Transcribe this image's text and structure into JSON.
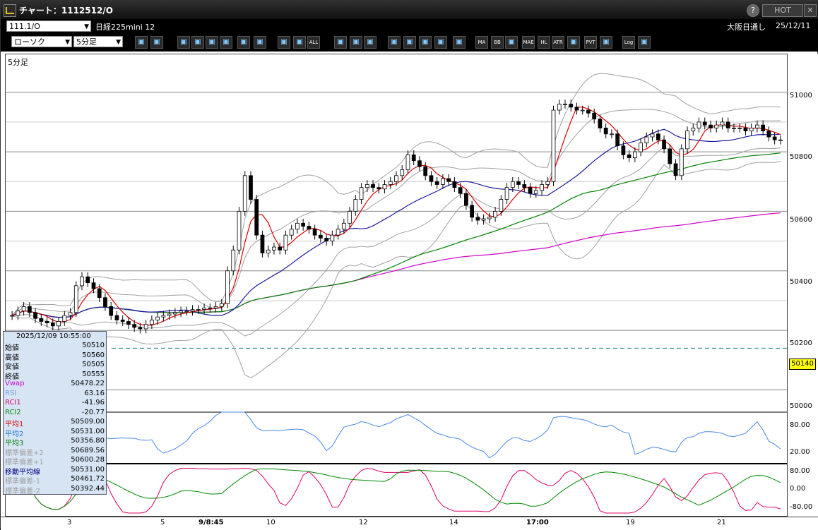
{
  "window": {
    "title": "チャート：1112512/O",
    "hot_label": "HOT",
    "help_label": "?",
    "close_label": "✕"
  },
  "header": {
    "symbol_code": "111.1/O",
    "symbol_name": "日経225mini 12",
    "session": "大阪日通し",
    "date": "25/12/11"
  },
  "toolbar": {
    "chart_type": "ローソク",
    "timeframe": "5分足",
    "buttons": [
      "ALL",
      "MA",
      "BB",
      "MAE",
      "HL",
      "ATR",
      "PVT",
      "Log"
    ]
  },
  "panel": {
    "timeframe_label": "5分足"
  },
  "price_axis": {
    "labels": [
      "51000",
      "50800",
      "50600",
      "50400",
      "50200",
      "50000"
    ],
    "current_price": "50140"
  },
  "rsi_axis": {
    "labels": [
      "80.00",
      "20.00"
    ]
  },
  "rci_axis": {
    "labels": [
      "80.00",
      "0.00",
      "-80.00"
    ]
  },
  "x_axis": {
    "labels": [
      {
        "text": "3",
        "bold": false
      },
      {
        "text": "5",
        "bold": false
      },
      {
        "text": "9/8:45",
        "bold": true
      },
      {
        "text": "10",
        "bold": false
      },
      {
        "text": "12",
        "bold": false
      },
      {
        "text": "14",
        "bold": false
      },
      {
        "text": "17:00",
        "bold": true
      },
      {
        "text": "19",
        "bold": false
      },
      {
        "text": "21",
        "bold": false
      }
    ]
  },
  "info": {
    "datetime": "2025/12/09  10:55:00",
    "rows": [
      {
        "k": "始値",
        "v": "50510",
        "color": "#000000"
      },
      {
        "k": "高値",
        "v": "50560",
        "color": "#000000"
      },
      {
        "k": "安値",
        "v": "50505",
        "color": "#000000"
      },
      {
        "k": "終値",
        "v": "50555",
        "color": "#000000"
      },
      {
        "k": "Vwap",
        "v": "50478.22",
        "color": "#cc00cc"
      },
      {
        "k": "RSI",
        "v": "63.16",
        "color": "#6aa0e8"
      },
      {
        "k": "RCI1",
        "v": "-41.96",
        "color": "#e0006a"
      },
      {
        "k": "RCI2",
        "v": "-20.77",
        "color": "#008800"
      },
      {
        "k": "平均1",
        "v": "50509.00",
        "color": "#e00000"
      },
      {
        "k": "平均2",
        "v": "50531.00",
        "color": "#1a7ad0"
      },
      {
        "k": "平均3",
        "v": "50356.80",
        "color": "#007a00"
      },
      {
        "k": "標準偏差+2",
        "v": "50689.56",
        "color": "#a0a0a0"
      },
      {
        "k": "標準偏差+1",
        "v": "50600.28",
        "color": "#a0a0a0"
      },
      {
        "k": "移動平均線",
        "v": "50531.00",
        "color": "#000080"
      },
      {
        "k": "標準偏差-1",
        "v": "50461.72",
        "color": "#a0a0a0"
      },
      {
        "k": "標準偏差-2",
        "v": "50392.44",
        "color": "#a0a0a0"
      }
    ]
  },
  "colors": {
    "up": "#ffffff",
    "down": "#000000",
    "ma_short": "#dd0000",
    "ma_mid": "#1a1aa0",
    "ma_long": "#008000",
    "vwap": "#cc00cc",
    "bands": "#a0a0a0",
    "rsi": "#4a88e8",
    "rci1": "#e0006a",
    "rci2": "#008800"
  },
  "chart_data": {
    "type": "candlestick",
    "price_ylim": [
      49930,
      51080
    ],
    "closes": [
      50250,
      50265,
      50280,
      50260,
      50240,
      50230,
      50225,
      50215,
      50230,
      50250,
      50260,
      50350,
      50380,
      50360,
      50340,
      50310,
      50280,
      50250,
      50235,
      50230,
      50220,
      50210,
      50205,
      50220,
      50235,
      50245,
      50250,
      50255,
      50260,
      50265,
      50265,
      50270,
      50270,
      50275,
      50275,
      50280,
      50290,
      50400,
      50470,
      50600,
      50720,
      50640,
      50520,
      50460,
      50470,
      50480,
      50470,
      50520,
      50540,
      50560,
      50550,
      50540,
      50520,
      50510,
      50500,
      50520,
      50540,
      50560,
      50600,
      50640,
      50680,
      50690,
      50680,
      50675,
      50690,
      50700,
      50720,
      50740,
      50790,
      50770,
      50750,
      50720,
      50700,
      50690,
      50710,
      50700,
      50680,
      50660,
      50620,
      50580,
      50570,
      50575,
      50580,
      50600,
      50640,
      50680,
      50700,
      50690,
      50680,
      50660,
      50670,
      50690,
      50700,
      50940,
      50960,
      50960,
      50950,
      50940,
      50940,
      50930,
      50910,
      50880,
      50860,
      50860,
      50820,
      50790,
      50780,
      50800,
      50830,
      50850,
      50860,
      50840,
      50810,
      50760,
      50720,
      50810,
      50870,
      50880,
      50900,
      50890,
      50880,
      50890,
      50900,
      50880,
      50880,
      50880,
      50870,
      50880,
      50890,
      50870,
      50850,
      50840,
      50840
    ]
  }
}
